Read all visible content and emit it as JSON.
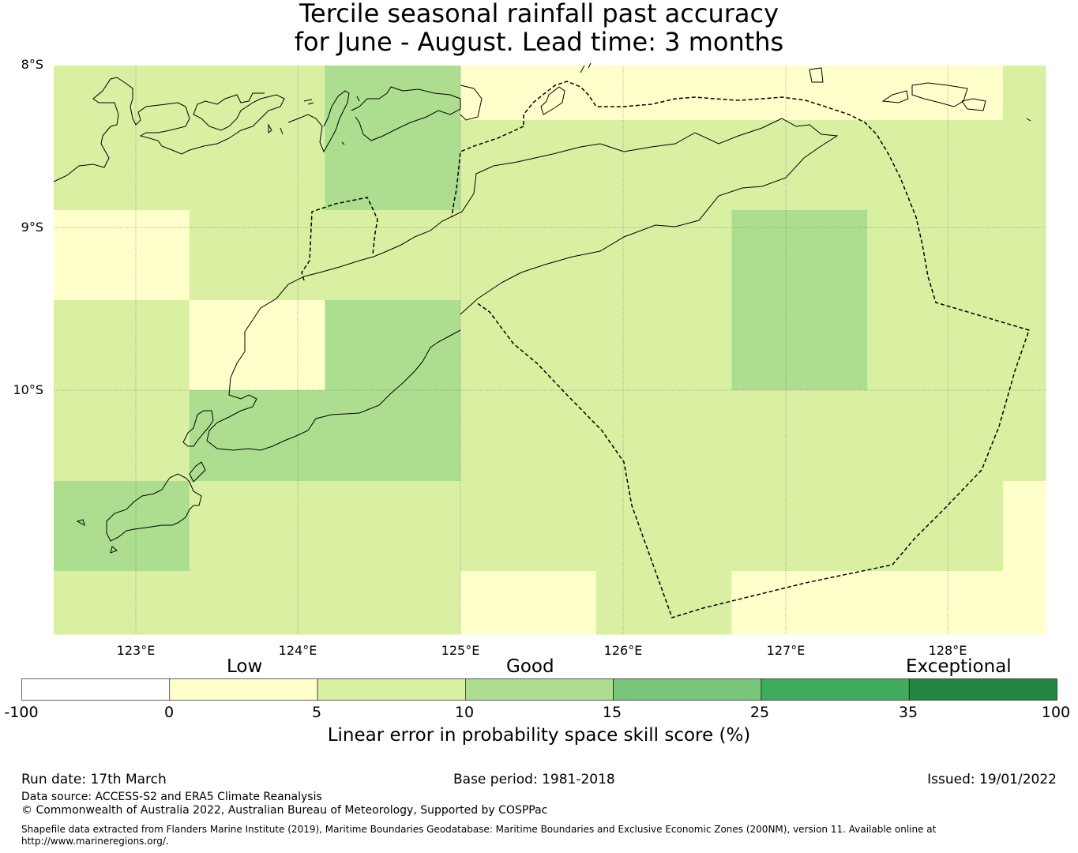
{
  "title": {
    "line1": "Tercile seasonal rainfall past accuracy",
    "line2": "for June - August. Lead time: 3 months"
  },
  "map": {
    "lat_labels": [
      "8°S",
      "9°S",
      "10°S"
    ],
    "lon_labels": [
      "123°E",
      "124°E",
      "125°E",
      "126°E",
      "127°E",
      "128°E"
    ],
    "grid_skill_classes": [
      [
        2,
        2,
        2,
        2,
        3,
        3,
        1,
        1,
        1,
        1,
        1,
        1,
        1,
        1,
        2
      ],
      [
        2,
        2,
        2,
        2,
        3,
        3,
        2,
        2,
        2,
        2,
        2,
        2,
        2,
        2,
        2
      ],
      [
        1,
        1,
        2,
        2,
        2,
        2,
        2,
        2,
        2,
        2,
        3,
        3,
        2,
        2,
        2
      ],
      [
        2,
        2,
        1,
        1,
        3,
        3,
        2,
        2,
        2,
        2,
        3,
        3,
        2,
        2,
        2
      ],
      [
        2,
        2,
        3,
        3,
        3,
        3,
        2,
        2,
        2,
        2,
        2,
        2,
        2,
        2,
        2
      ],
      [
        3,
        3,
        2,
        2,
        2,
        2,
        2,
        2,
        2,
        2,
        2,
        2,
        2,
        2,
        1
      ],
      [
        2,
        2,
        2,
        2,
        2,
        2,
        1,
        1,
        2,
        2,
        1,
        1,
        1,
        1,
        1
      ]
    ],
    "icon": "coastline-and-eez-outline"
  },
  "colorbar": {
    "category_labels": {
      "low": "Low",
      "good": "Good",
      "exceptional": "Exceptional"
    },
    "ticks": [
      "-100",
      "0",
      "5",
      "10",
      "15",
      "25",
      "35",
      "100"
    ],
    "colors": [
      "#ffffff",
      "#ffffcc",
      "#d9f0a3",
      "#addd8e",
      "#78c679",
      "#41ab5d",
      "#238443"
    ],
    "xlabel": "Linear error in probability space skill score (%)"
  },
  "footer": {
    "run_date": "Run date: 17th March",
    "base_period": "Base period: 1981-2018",
    "issued": "Issued: 19/01/2022",
    "data_source": "Data source: ACCESS-S2 and ERA5 Climate Reanalysis",
    "copyright": "© Commonwealth of Australia 2022, Australian Bureau of Meteorology, Supported by COSPPac",
    "shapefile_line1": "Shapefile data extracted from Flanders Marine Institute (2019), Maritime Boundaries Geodatabase: Maritime Boundaries and Exclusive Economic Zones (200NM), version 11. Available online at",
    "shapefile_line2": "http://www.marineregions.org/."
  }
}
